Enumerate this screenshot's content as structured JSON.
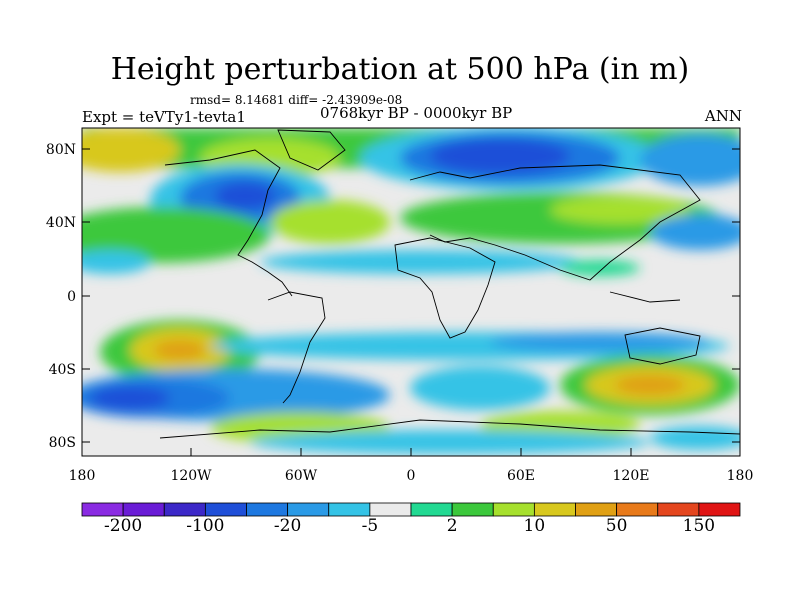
{
  "title": "Height perturbation at 500 hPa (in m)",
  "stats": "rmsd= 8.14681 diff= -2.43909e-08",
  "experiment": "Expt = teVTy1-tevta1",
  "period": "0768kyr BP - 0000kyr BP",
  "season": "ANN",
  "lat_labels": [
    "80N",
    "40N",
    "0",
    "40S",
    "80S"
  ],
  "lon_labels": [
    "180",
    "120W",
    "60W",
    "0",
    "60E",
    "120E",
    "180"
  ],
  "colorbar": {
    "colors": [
      "#8a2be2",
      "#6a1cd6",
      "#3c28c8",
      "#1f4fd8",
      "#1e78e0",
      "#2a9ae6",
      "#34c3e6",
      "#ebebeb",
      "#22d992",
      "#3cc83c",
      "#a6e02d",
      "#d8c81e",
      "#e0a014",
      "#e87a1a",
      "#e4461e",
      "#e01414"
    ],
    "labels": [
      "-200",
      "-100",
      "-20",
      "-5",
      "2",
      "10",
      "50",
      "150"
    ]
  }
}
